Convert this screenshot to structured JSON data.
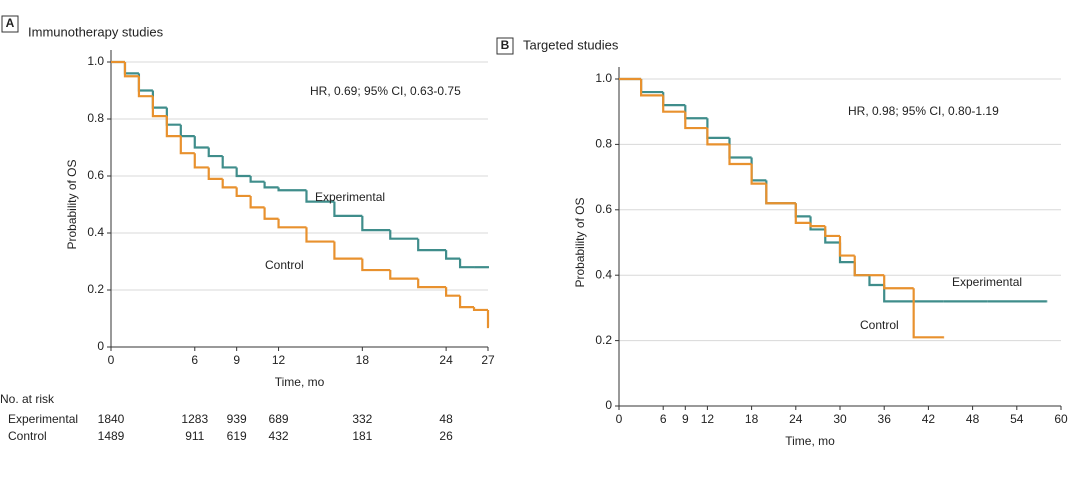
{
  "chart_data": [
    {
      "type": "line",
      "step": true,
      "panel": "A",
      "title": "Immunotherapy studies",
      "annotation": "HR, 0.69; 95% CI, 0.63-0.75",
      "x_label": "Time, mo",
      "y_label": "Probability of OS",
      "x": [
        0,
        1,
        2,
        3,
        4,
        5,
        6,
        7,
        8,
        9,
        10,
        11,
        12,
        14,
        16,
        18,
        20,
        22,
        24,
        25,
        26,
        27
      ],
      "xlim": [
        0,
        27
      ],
      "xticks": [
        0,
        6,
        9,
        12,
        18,
        24,
        27
      ],
      "ylim": [
        0,
        1
      ],
      "yticks": [
        0,
        0.2,
        0.4,
        0.6,
        0.8,
        {
          "value": 1,
          "label": "1.0"
        }
      ],
      "grid": true,
      "series": [
        {
          "name": "Experimental",
          "color": "#3f8d8b",
          "values": [
            1.0,
            0.96,
            0.9,
            0.84,
            0.78,
            0.74,
            0.7,
            0.67,
            0.63,
            0.6,
            0.58,
            0.56,
            0.55,
            0.51,
            0.46,
            0.41,
            0.38,
            0.34,
            0.31,
            0.28,
            0.28,
            0.28
          ]
        },
        {
          "name": "Control",
          "color": "#e8912e",
          "values": [
            1.0,
            0.95,
            0.88,
            0.81,
            0.74,
            0.68,
            0.63,
            0.59,
            0.56,
            0.53,
            0.49,
            0.45,
            0.42,
            0.37,
            0.31,
            0.27,
            0.24,
            0.21,
            0.18,
            0.14,
            0.13,
            0.07
          ]
        }
      ],
      "risk_table": {
        "title": "No. at risk",
        "rows": [
          {
            "name": "Experimental",
            "values": [
              1840,
              1283,
              939,
              689,
              332,
              48
            ]
          },
          {
            "name": "Control",
            "values": [
              1489,
              911,
              619,
              432,
              181,
              26
            ]
          }
        ]
      }
    },
    {
      "type": "line",
      "step": true,
      "panel": "B",
      "title": "Targeted studies",
      "annotation": "HR, 0.98; 95% CI, 0.80-1.19",
      "x_label": "Time, mo",
      "y_label": "Probability of OS",
      "x": [
        0,
        3,
        6,
        9,
        12,
        15,
        18,
        20,
        24,
        26,
        28,
        30,
        32,
        34,
        36,
        40,
        44,
        50,
        58
      ],
      "xlim": [
        0,
        60
      ],
      "xticks": [
        0,
        6,
        9,
        12,
        18,
        24,
        30,
        36,
        42,
        48,
        54,
        60
      ],
      "ylim": [
        0,
        1
      ],
      "yticks": [
        0,
        0.2,
        0.4,
        0.6,
        0.8,
        {
          "value": 1,
          "label": "1.0"
        }
      ],
      "grid": true,
      "series": [
        {
          "name": "Experimental",
          "color": "#3f8d8b",
          "values": [
            1.0,
            0.96,
            0.92,
            0.88,
            0.82,
            0.76,
            0.69,
            0.62,
            0.58,
            0.54,
            0.5,
            0.44,
            0.4,
            0.37,
            0.32,
            0.32,
            0.32,
            0.32,
            0.32
          ]
        },
        {
          "name": "Control",
          "color": "#e8912e",
          "values": [
            1.0,
            0.95,
            0.9,
            0.85,
            0.8,
            0.74,
            0.68,
            0.62,
            0.56,
            0.55,
            0.52,
            0.46,
            0.4,
            0.4,
            0.36,
            0.21,
            0.21,
            null,
            null
          ]
        }
      ]
    }
  ]
}
